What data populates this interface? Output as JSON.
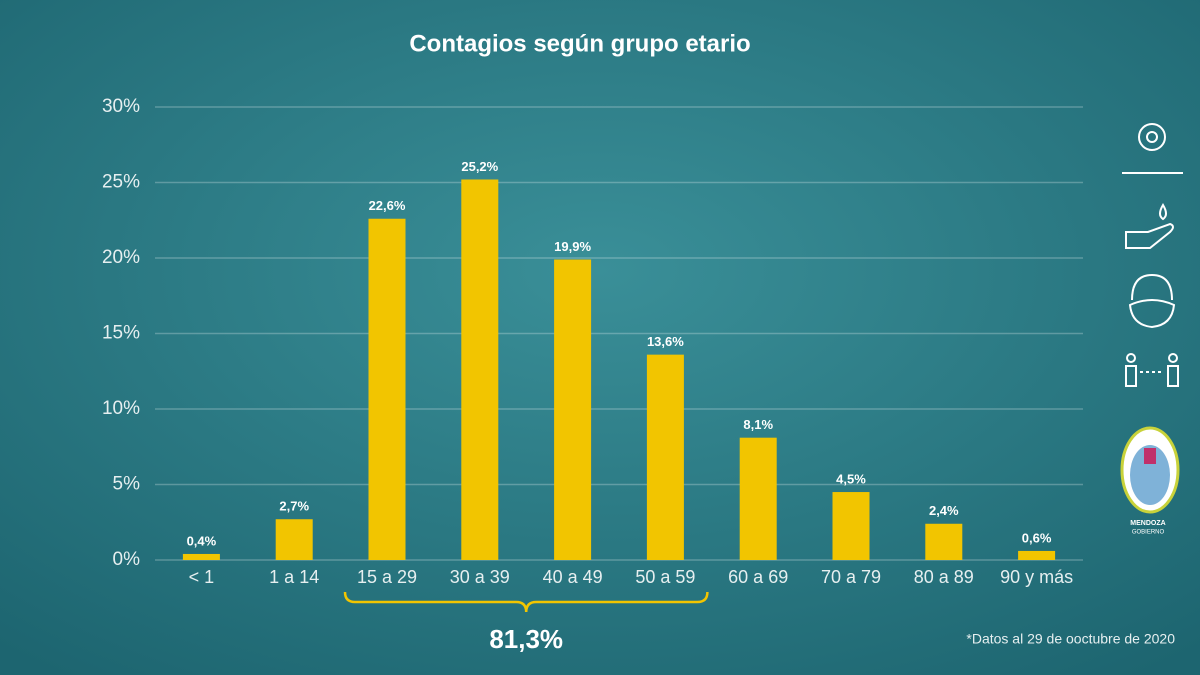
{
  "chart_data": {
    "type": "bar",
    "title": "Contagios según grupo etario",
    "categories": [
      "< 1",
      "1 a 14",
      "15 a 29",
      "30 a 39",
      "40 a 49",
      "50 a 59",
      "60 a 69",
      "70 a 79",
      "80 a 89",
      "90 y más"
    ],
    "values": [
      0.4,
      2.7,
      22.6,
      25.2,
      19.9,
      13.6,
      8.1,
      4.5,
      2.4,
      0.6
    ],
    "value_labels": [
      "0,4%",
      "2,7%",
      "22,6%",
      "25,2%",
      "19,9%",
      "13,6%",
      "8,1%",
      "4,5%",
      "2,4%",
      "0,6%"
    ],
    "color": "#f2c500",
    "ylim": [
      0,
      30
    ],
    "yticks": [
      {
        "value": 0,
        "label": "0%"
      },
      {
        "value": 5,
        "label": "5%"
      },
      {
        "value": 10,
        "label": "10%"
      },
      {
        "value": 15,
        "label": "15%"
      },
      {
        "value": 20,
        "label": "20%"
      },
      {
        "value": 25,
        "label": "25%"
      },
      {
        "value": 30,
        "label": "30%"
      }
    ],
    "grid": true,
    "annotation": "81,3%",
    "footnote": "*Datos al 29 de ooctubre de 2020",
    "logo": {
      "name": "MENDOZA",
      "subtitle": "GOBIERNO"
    }
  }
}
